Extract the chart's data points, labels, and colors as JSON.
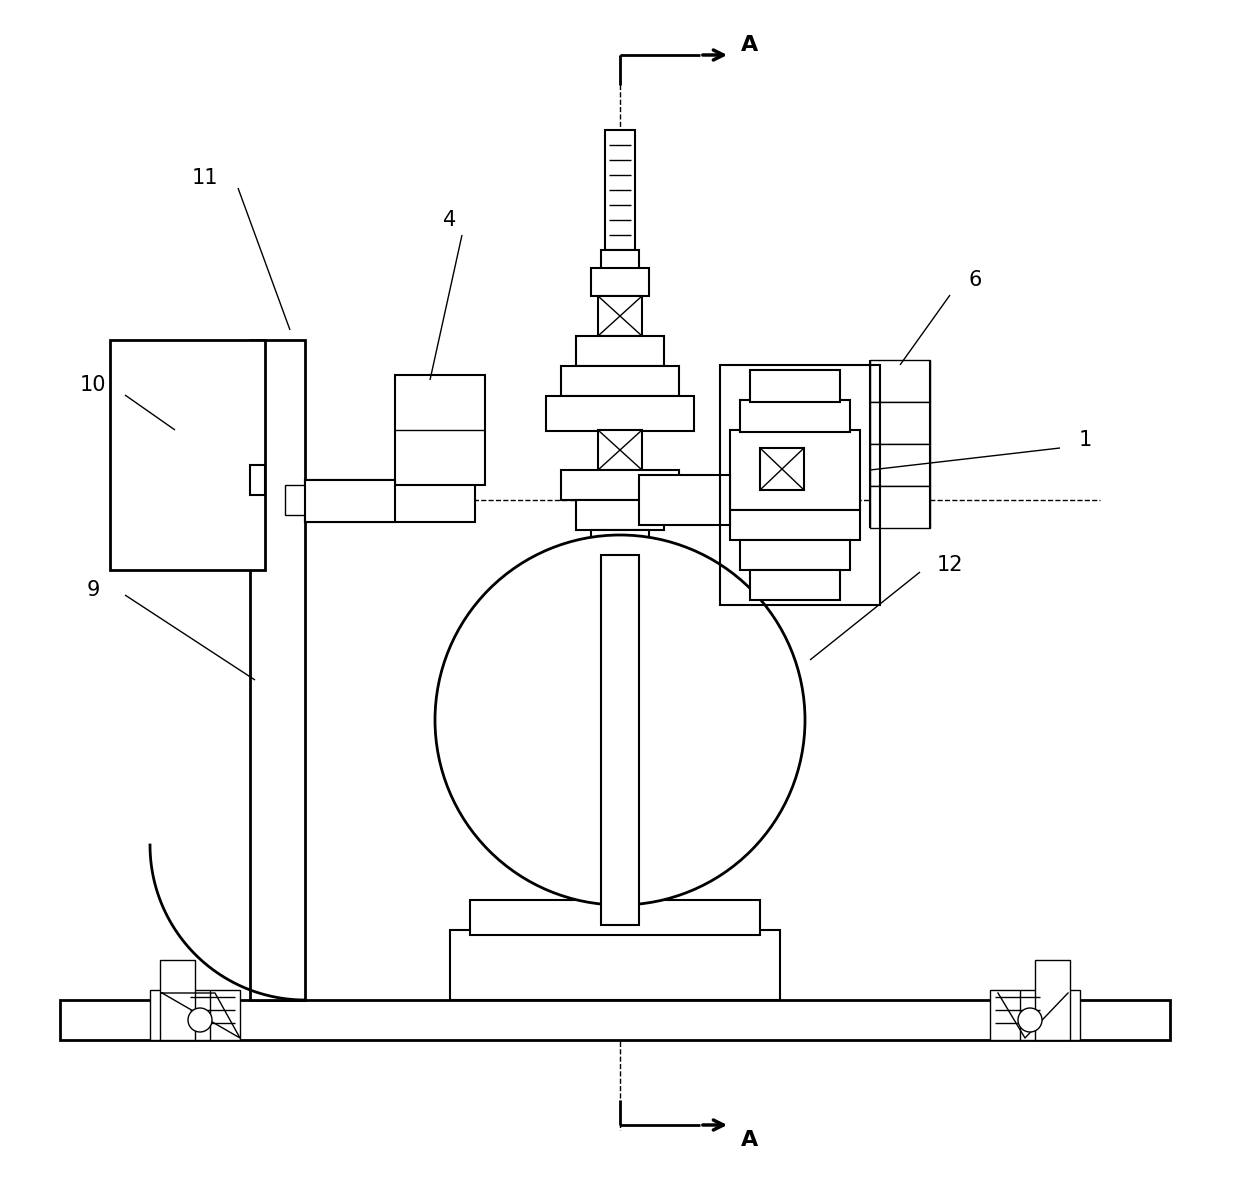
{
  "bg_color": "#ffffff",
  "line_color": "#000000",
  "fig_width": 12.4,
  "fig_height": 11.77,
  "dpi": 100,
  "labels": {
    "A_top": "A",
    "A_bottom": "A",
    "num_1": "1",
    "num_4": "4",
    "num_6": "6",
    "num_9": "9",
    "num_10": "10",
    "num_11": "11",
    "num_12": "12"
  }
}
